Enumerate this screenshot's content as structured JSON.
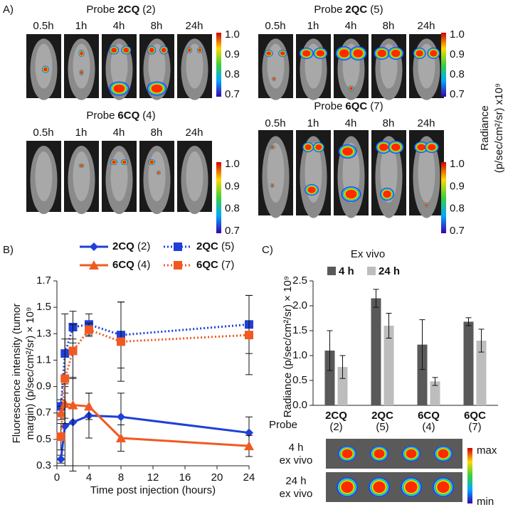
{
  "panel_labels": [
    "A)",
    "B)",
    "C)"
  ],
  "imaging": {
    "groups": [
      {
        "prefix": "Probe",
        "probe": "2CQ",
        "number": "(2)",
        "times": [
          "0.5h",
          "1h",
          "4h",
          "8h",
          "24h"
        ]
      },
      {
        "prefix": "Probe",
        "probe": "2QC",
        "number": "(5)",
        "times": [
          "0.5h",
          "1h",
          "4h",
          "8h",
          "24h"
        ]
      },
      {
        "prefix": "Probe",
        "probe": "6CQ",
        "number": "(4)",
        "times": [
          "0.5h",
          "1h",
          "4h",
          "8h",
          "24h"
        ]
      },
      {
        "prefix": "Probe",
        "probe": "6QC",
        "number": "(7)",
        "times": [
          "0.5h",
          "1h",
          "4h",
          "8h",
          "24h"
        ]
      }
    ],
    "colorbar_ticks": [
      "1.0",
      "0.9",
      "0.8",
      "0.7"
    ],
    "colorbar_label": [
      "Radiance",
      "(p/sec/cm²/sr) x10⁹"
    ]
  },
  "chart_data": [
    {
      "type": "line",
      "x": [
        0.5,
        1,
        2,
        4,
        8,
        24
      ],
      "xlim": [
        0,
        24
      ],
      "xticks": [
        0,
        4,
        8,
        12,
        16,
        20,
        24
      ],
      "ylim": [
        0.3,
        1.7
      ],
      "yticks": [
        0.3,
        0.5,
        0.7,
        0.9,
        1.1,
        1.3,
        1.5,
        1.7
      ],
      "xlabel": "Time post injection (hours)",
      "ylabel": [
        "Fluorescence intensity (tumor",
        "margin) (p/sec/cm²/sr) × 10⁹"
      ],
      "series": [
        {
          "name": "2CQ (2)",
          "color": "#1f3fd8",
          "marker": "diamond",
          "linestyle": "solid",
          "values": [
            0.35,
            0.6,
            0.63,
            0.68,
            0.67,
            0.55
          ],
          "errors": [
            0.03,
            0.3,
            0.33,
            0.17,
            0.18,
            0.12
          ]
        },
        {
          "name": "2QC (5)",
          "color": "#1f3fd8",
          "marker": "square",
          "linestyle": "dotted",
          "values": [
            0.75,
            1.15,
            1.35,
            1.37,
            1.29,
            1.37
          ],
          "errors": [
            0.05,
            0.3,
            0.12,
            0.08,
            0.25,
            0.22
          ]
        },
        {
          "name": "6CQ (4)",
          "color": "#f05a22",
          "marker": "triangle",
          "linestyle": "solid",
          "values": [
            0.7,
            0.77,
            0.76,
            0.75,
            0.51,
            0.45
          ],
          "errors": [
            0.05,
            0.15,
            0.5,
            0.1,
            0.1,
            0.08
          ]
        },
        {
          "name": "6QC (7)",
          "color": "#f05a22",
          "marker": "square",
          "linestyle": "dotted",
          "values": [
            0.52,
            0.96,
            1.17,
            1.33,
            1.24,
            1.29
          ],
          "errors": [
            0.1,
            0.3,
            0.2,
            0.05,
            0.3,
            0.3
          ]
        }
      ]
    },
    {
      "type": "bar",
      "title": "Ex vivo",
      "categories": [
        "2CQ (2)",
        "2QC (5)",
        "6CQ (4)",
        "6QC (7)"
      ],
      "ylim": [
        0,
        2.5
      ],
      "yticks": [
        {
          "value": 0,
          "label": "0.0"
        },
        0.5,
        {
          "value": 1,
          "label": "1.0"
        },
        1.5,
        {
          "value": 2,
          "label": "2.0"
        },
        2.5
      ],
      "ylabel": "Radiance (p/sec/cm²/sr) × 10⁹",
      "series": [
        {
          "name": "4 h",
          "color": "#595959",
          "values": [
            1.1,
            2.15,
            1.22,
            1.68
          ],
          "errors": [
            0.4,
            0.18,
            0.5,
            0.08
          ]
        },
        {
          "name": "24 h",
          "color": "#bdbdbd",
          "values": [
            0.77,
            1.6,
            0.48,
            1.3
          ],
          "errors": [
            0.23,
            0.25,
            0.08,
            0.23
          ]
        }
      ]
    }
  ],
  "ex_vivo": {
    "probe_label": "Probe",
    "rows": [
      [
        "4 h",
        "ex vivo"
      ],
      [
        "24 h",
        "ex vivo"
      ]
    ],
    "colorbar": [
      "max",
      "min"
    ]
  }
}
